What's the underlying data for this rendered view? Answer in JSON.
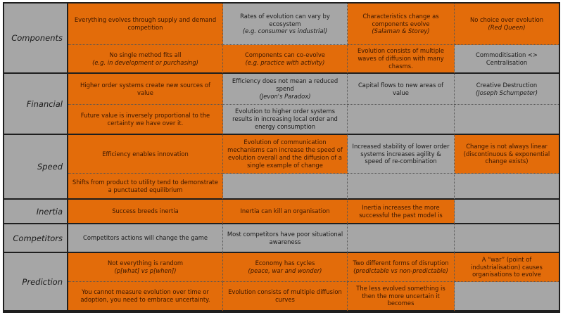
{
  "colors": {
    "orange": "#e36c0a",
    "gray": "#a6a6a6"
  },
  "rows": [
    {
      "label": "Components",
      "cells": [
        [
          {
            "text": "Everything evolves through supply and demand competition",
            "sub": "",
            "color": "orange"
          },
          {
            "text": "Rates of evolution can vary by ecosystem",
            "sub": "(e.g. consumer vs industrial)",
            "color": "gray"
          },
          {
            "text": "Characteristics change as components evolve",
            "sub": "(Salaman & Storey)",
            "color": "orange"
          },
          {
            "text": "No choice over evolution",
            "sub": "(Red Queen)",
            "color": "orange"
          }
        ],
        [
          {
            "text": "No single method fits all",
            "sub": "(e.g. in development or purchasing)",
            "color": "orange"
          },
          {
            "text": "Components can co-evolve",
            "sub": "(e.g. practice with activity)",
            "color": "orange"
          },
          {
            "text": "Evolution consists of multiple waves of diffusion with many chasms.",
            "sub": "",
            "color": "orange"
          },
          {
            "text": "Commoditisation <> Centralisation",
            "sub": "",
            "color": "gray"
          }
        ]
      ]
    },
    {
      "label": "Financial",
      "cells": [
        [
          {
            "text": "Higher order systems create new sources of value",
            "sub": "",
            "color": "orange"
          },
          {
            "text": "Efficiency does not mean a reduced spend",
            "sub": "(Jevon's Paradox)",
            "color": "gray"
          },
          {
            "text": "Capital flows to new areas of value",
            "sub": "",
            "color": "gray"
          },
          {
            "text": "Creative Destruction",
            "sub": "(Joseph Schumpeter)",
            "color": "gray"
          }
        ],
        [
          {
            "text": "Future value is inversely proportional to the certainty we have over it.",
            "sub": "",
            "color": "orange"
          },
          {
            "text": "Evolution to higher order systems results in increasing local order and energy consumption",
            "sub": "",
            "color": "gray"
          },
          {
            "text": "",
            "sub": "",
            "color": "gray"
          },
          {
            "text": "",
            "sub": "",
            "color": "gray"
          }
        ]
      ]
    },
    {
      "label": "Speed",
      "cells": [
        [
          {
            "text": "Efficiency enables innovation",
            "sub": "",
            "color": "orange"
          },
          {
            "text": "Evolution of communication mechanisms can increase the speed of evolution overall and the diffusion of a single example of change",
            "sub": "",
            "color": "orange"
          },
          {
            "text": "Increased stability of lower order systems increases agility & speed of re-combination",
            "sub": "",
            "color": "gray"
          },
          {
            "text": "Change is not always linear (discontinuous & exponential change exists)",
            "sub": "",
            "color": "orange"
          }
        ],
        [
          {
            "text": "Shifts from product to utility tend to demonstrate a punctuated equilibrium",
            "sub": "",
            "color": "orange"
          },
          {
            "text": "",
            "sub": "",
            "color": "gray"
          },
          {
            "text": "",
            "sub": "",
            "color": "gray"
          },
          {
            "text": "",
            "sub": "",
            "color": "gray"
          }
        ]
      ]
    },
    {
      "label": "Inertia",
      "cells": [
        [
          {
            "text": "Success breeds inertia",
            "sub": "",
            "color": "orange"
          },
          {
            "text": "Inertia can kill an organisation",
            "sub": "",
            "color": "orange"
          },
          {
            "text": "Inertia increases the more successful the past model is",
            "sub": "",
            "color": "orange"
          },
          {
            "text": "",
            "sub": "",
            "color": "gray"
          }
        ]
      ]
    },
    {
      "label": "Competitors",
      "cells": [
        [
          {
            "text": "Competitors actions will change the game",
            "sub": "",
            "color": "gray"
          },
          {
            "text": "Most competitors have poor situational awareness",
            "sub": "",
            "color": "gray"
          },
          {
            "text": "",
            "sub": "",
            "color": "gray"
          },
          {
            "text": "",
            "sub": "",
            "color": "gray"
          }
        ]
      ]
    },
    {
      "label": "Prediction",
      "cells": [
        [
          {
            "text": "Not everything is random",
            "sub": "(p[what] vs p[when])",
            "color": "orange"
          },
          {
            "text": "Economy has cycles",
            "sub": "(peace, war and wonder)",
            "color": "orange"
          },
          {
            "text": "Two different forms of disruption",
            "sub": "(predictable vs non-predictable)",
            "color": "orange"
          },
          {
            "text": "A “war” (point of industrialisation) causes organisations to evolve",
            "sub": "",
            "color": "orange"
          }
        ],
        [
          {
            "text": "You cannot measure evolution over time or adoption, you need to embrace uncertainty.",
            "sub": "",
            "color": "orange"
          },
          {
            "text": "Evolution consists of multiple diffusion curves",
            "sub": "",
            "color": "orange"
          },
          {
            "text": "The less evolved something is then the more uncertain it becomes",
            "sub": "",
            "color": "orange"
          },
          {
            "text": "",
            "sub": "",
            "color": "gray"
          }
        ]
      ]
    }
  ]
}
